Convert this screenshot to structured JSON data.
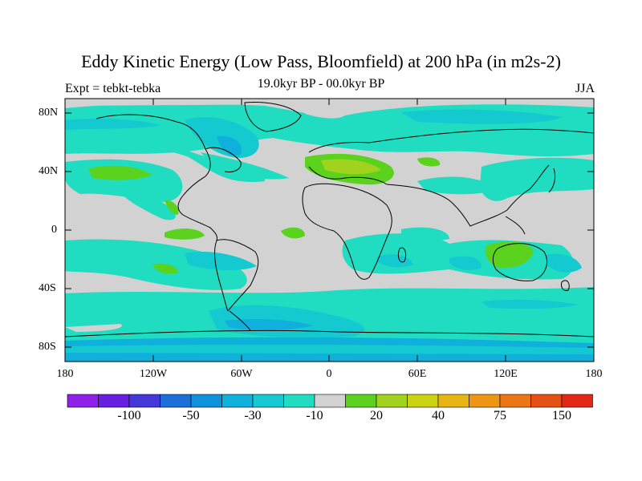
{
  "title": "Eddy Kinetic Energy (Low Pass, Bloomfield) at 200 hPa (in m2s-2)",
  "left_string": "Expt = tebkt-tebka",
  "center_string": "19.0kyr BP - 00.0kyr BP",
  "right_string": "JJA",
  "y_ticks": [
    "80N",
    "40N",
    "0",
    "40S",
    "80S"
  ],
  "x_ticks": [
    "180",
    "120W",
    "60W",
    "0",
    "60E",
    "120E",
    "180"
  ],
  "colorbar": {
    "colors": [
      "#8f20e8",
      "#6a1ee0",
      "#4438d8",
      "#1c6ed8",
      "#0f92dc",
      "#10b0dc",
      "#14cad0",
      "#20dcc0",
      "#d2d2d2",
      "#5ad21e",
      "#a0d21e",
      "#ccd214",
      "#e6b414",
      "#ee9614",
      "#ec7614",
      "#e65014",
      "#e02814"
    ],
    "labels": [
      "-100",
      "-50",
      "-30",
      "-10",
      "20",
      "40",
      "75",
      "150"
    ]
  }
}
